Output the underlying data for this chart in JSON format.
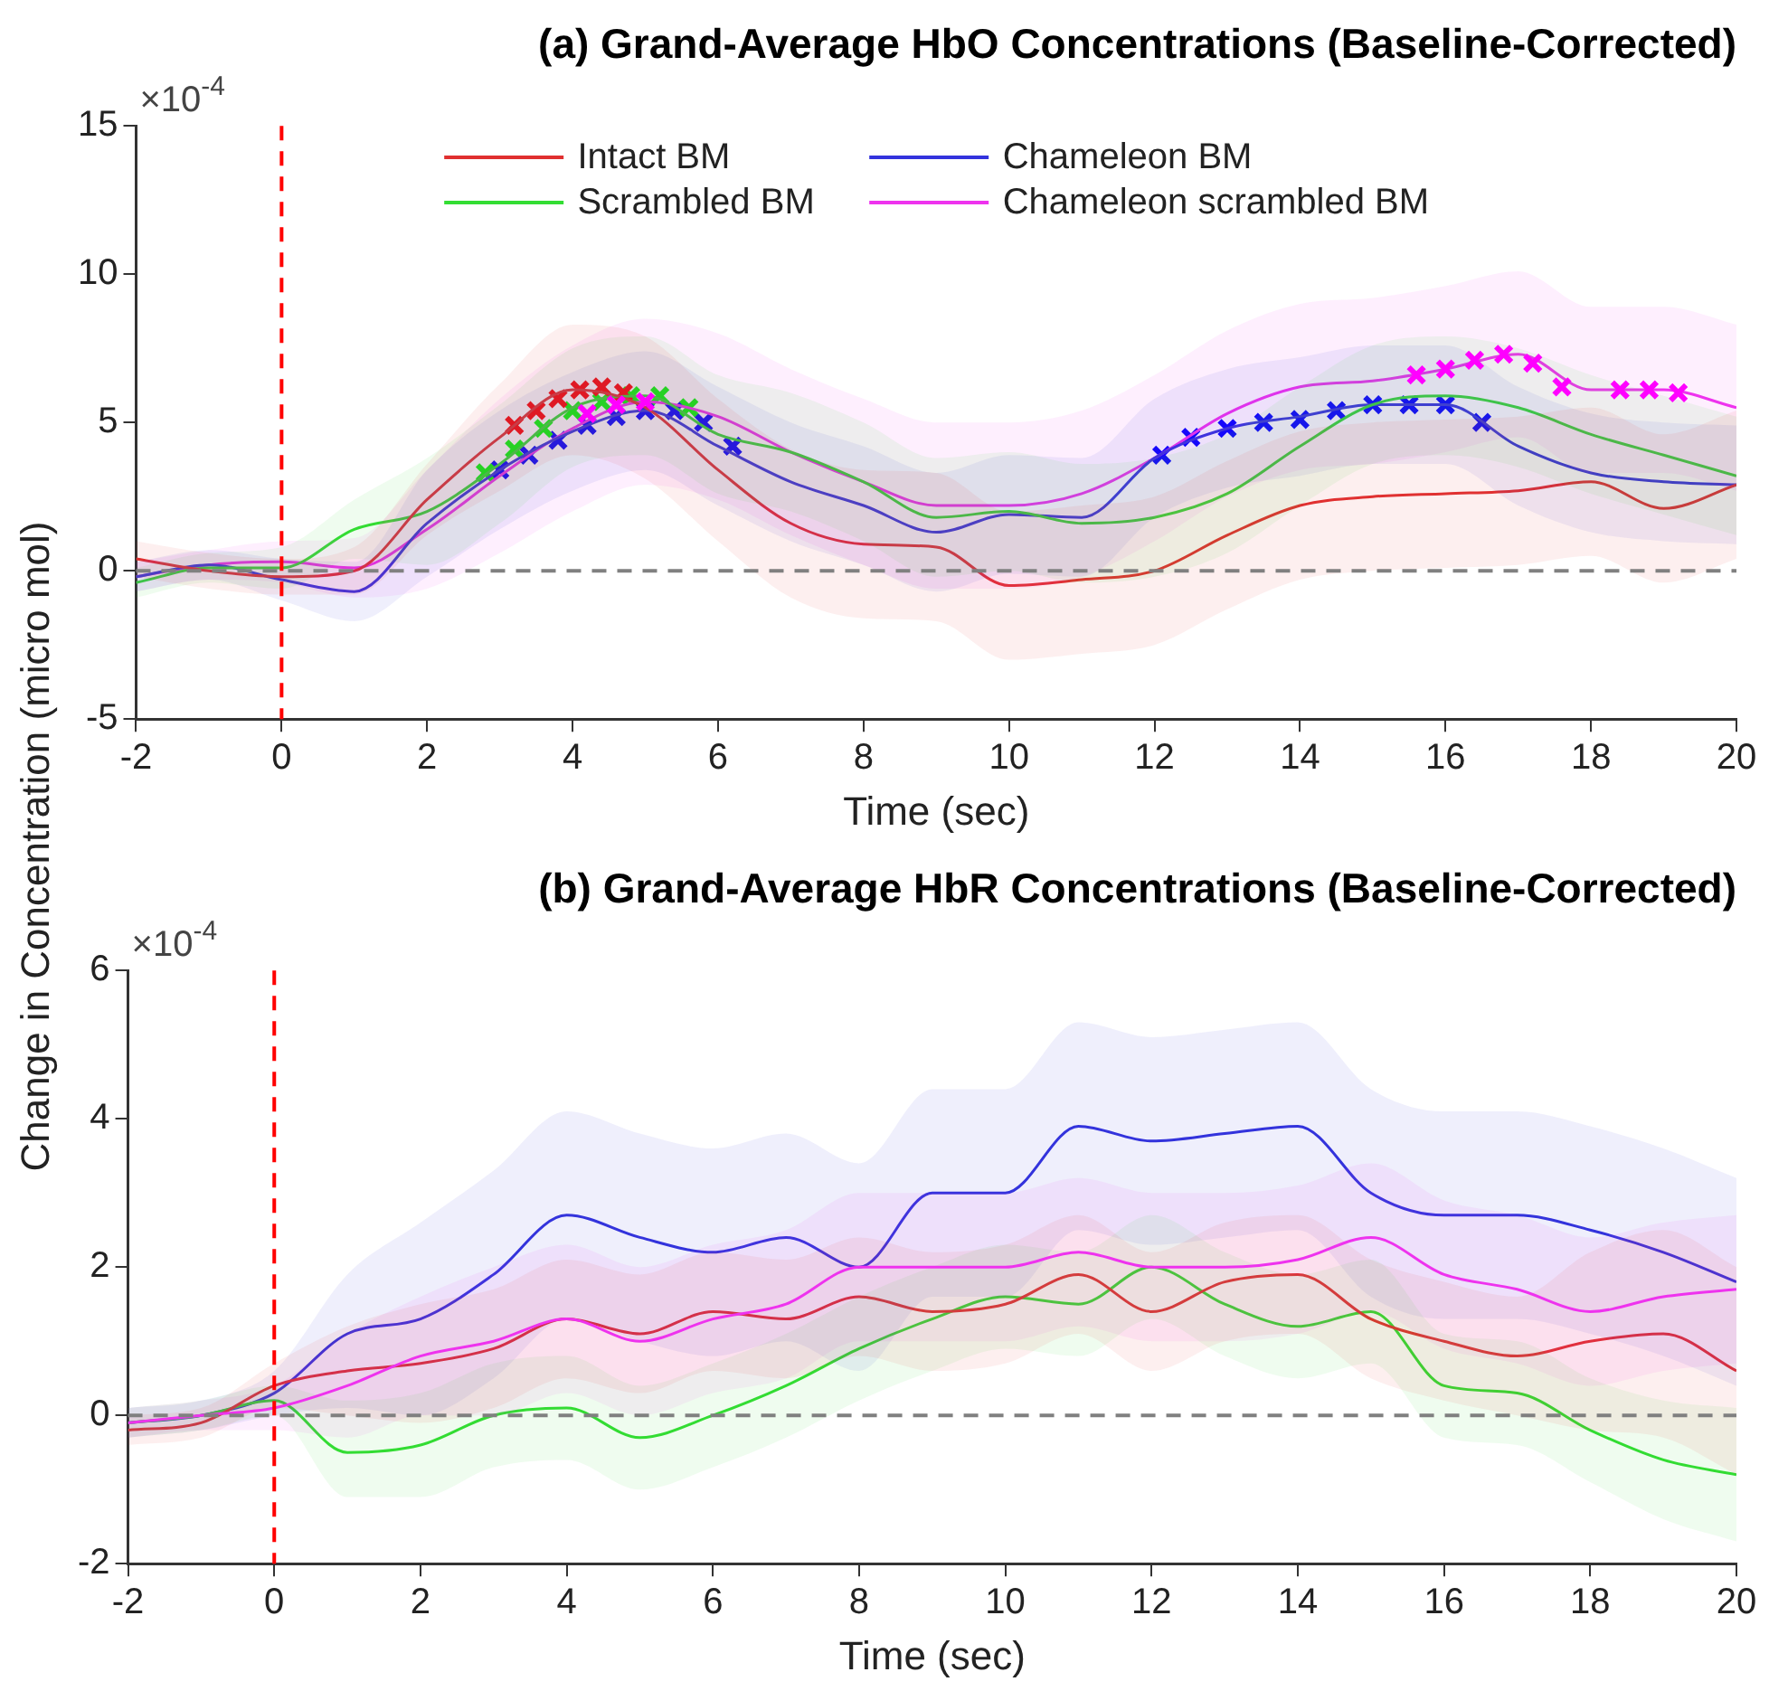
{
  "chart_data": [
    {
      "type": "line",
      "title": "(a) Grand-Average HbO Concentrations (Baseline-Corrected)",
      "xlabel": "Time (sec)",
      "ylabel": "Change in Concentration (micro mol)",
      "annotations": [
        "×10$^{-4}$"
      ],
      "xlim": [
        -2,
        20
      ],
      "xticks": [
        -2,
        0,
        2,
        4,
        6,
        8,
        10,
        12,
        14,
        16,
        18,
        20
      ],
      "ylim": [
        -5,
        15
      ],
      "yticks": [
        -5,
        0,
        5,
        10,
        15
      ],
      "grid": false,
      "legend": "top",
      "marker": "none",
      "line_style": "solid",
      "x": [
        -2,
        -1,
        0,
        1,
        2,
        3,
        4,
        5,
        6,
        7,
        8,
        9,
        10,
        11,
        12,
        13,
        14,
        15,
        16,
        17,
        18,
        19,
        20
      ],
      "ref_lines": [
        {
          "axis": "x",
          "value": 0,
          "color": "#ff0000",
          "line_style": "dashed"
        },
        {
          "axis": "y",
          "value": 0,
          "color": "#808080",
          "line_style": "dashed"
        }
      ],
      "series": [
        {
          "name": "Intact BM",
          "color": "#e03030",
          "values": [
            0.4,
            0,
            -0.2,
            0,
            2.4,
            4.5,
            6.1,
            5.5,
            3.4,
            1.6,
            0.9,
            0.8,
            -0.5,
            -0.3,
            0,
            1.2,
            2.2,
            2.5,
            2.6,
            2.7,
            3.0,
            2.1,
            2.9
          ],
          "lower": [
            -0.2,
            -0.6,
            -0.8,
            -0.8,
            1.2,
            2.7,
            3.9,
            3.1,
            1.0,
            -0.9,
            -1.6,
            -1.7,
            -3.0,
            -2.8,
            -2.5,
            -1.3,
            -0.3,
            0,
            0.1,
            0.2,
            0.5,
            -0.4,
            0.4
          ],
          "upper": [
            1.0,
            0.6,
            0.4,
            0.8,
            3.6,
            6.3,
            8.3,
            7.9,
            5.8,
            4.1,
            3.4,
            3.3,
            2.0,
            2.2,
            2.5,
            3.7,
            4.7,
            5.0,
            5.1,
            5.2,
            5.5,
            4.6,
            5.4
          ]
        },
        {
          "name": "Scrambled BM",
          "color": "#33dd33",
          "values": [
            -0.4,
            0.1,
            0.1,
            1.4,
            2.0,
            3.6,
            5.5,
            5.9,
            4.6,
            4.0,
            3.0,
            1.8,
            2.0,
            1.6,
            1.8,
            2.6,
            4.2,
            5.6,
            5.9,
            5.5,
            4.6,
            3.9,
            3.2
          ],
          "lower": [
            -0.9,
            -0.4,
            -0.6,
            0.4,
            0.2,
            1.6,
            3.5,
            3.9,
            2.6,
            2.0,
            1.0,
            -0.2,
            0,
            -0.4,
            -0.2,
            0.6,
            2.2,
            3.6,
            3.9,
            3.5,
            2.6,
            1.9,
            1.2
          ],
          "upper": [
            0.1,
            0.6,
            0.8,
            2.4,
            3.8,
            5.6,
            7.5,
            7.9,
            6.6,
            6.0,
            5.0,
            3.8,
            4.0,
            3.6,
            3.8,
            4.6,
            6.2,
            7.6,
            7.9,
            7.5,
            6.6,
            5.9,
            5.2
          ]
        },
        {
          "name": "Chameleon BM",
          "color": "#3333dd",
          "values": [
            -0.2,
            0.2,
            -0.3,
            -0.7,
            1.6,
            3.4,
            4.7,
            5.4,
            4.2,
            3.0,
            2.2,
            1.3,
            1.9,
            1.8,
            3.8,
            4.8,
            5.2,
            5.6,
            5.6,
            4.2,
            3.3,
            3.0,
            2.9
          ],
          "lower": [
            -0.7,
            -0.3,
            -1.0,
            -1.7,
            -0.2,
            1.4,
            2.7,
            3.4,
            2.2,
            1.0,
            0.2,
            -0.7,
            -0.1,
            -0.2,
            1.8,
            2.8,
            3.2,
            3.6,
            3.6,
            2.2,
            1.3,
            1.0,
            0.9
          ],
          "upper": [
            0.3,
            0.7,
            0.4,
            0.3,
            3.4,
            5.4,
            6.7,
            7.4,
            6.2,
            5.0,
            4.2,
            3.3,
            3.9,
            3.8,
            5.8,
            6.8,
            7.2,
            7.6,
            7.6,
            6.2,
            5.3,
            5.0,
            4.9
          ]
        },
        {
          "name": "Chameleon scrambled BM",
          "color": "#ee33ee",
          "values": [
            -0.2,
            0.2,
            0.3,
            0.1,
            1.4,
            3.2,
            4.8,
            5.7,
            5.2,
            4.0,
            3.0,
            2.2,
            2.2,
            2.6,
            3.8,
            5.3,
            6.2,
            6.4,
            6.8,
            7.3,
            6.1,
            6.1,
            5.5
          ],
          "lower": [
            -0.7,
            -0.3,
            -0.4,
            -0.9,
            -0.6,
            0.6,
            2.0,
            2.9,
            2.4,
            1.2,
            0.2,
            -0.6,
            -0.6,
            -0.2,
            1.0,
            2.5,
            3.4,
            3.6,
            4.0,
            4.5,
            3.3,
            3.3,
            2.7
          ],
          "upper": [
            0.3,
            0.7,
            1.0,
            1.1,
            3.4,
            5.8,
            7.6,
            8.5,
            8.0,
            6.8,
            5.8,
            5.0,
            5.0,
            5.4,
            6.6,
            8.1,
            9.0,
            9.2,
            9.6,
            10.1,
            8.9,
            8.9,
            8.3
          ]
        },
        {
          "type": "scatter",
          "marker": "cross",
          "color": "#ff0000",
          "x": [
            3.2,
            3.5,
            3.8,
            4.1,
            4.4,
            4.7
          ],
          "values": [
            4.9,
            5.4,
            5.8,
            6.1,
            6.2,
            6.0
          ]
        },
        {
          "type": "scatter",
          "marker": "cross",
          "color": "#00ff00",
          "x": [
            2.8,
            3.2,
            3.6,
            4.0,
            4.4,
            4.8,
            5.2,
            5.6
          ],
          "values": [
            3.3,
            4.1,
            4.8,
            5.4,
            5.7,
            5.9,
            5.9,
            5.5
          ]
        },
        {
          "type": "scatter",
          "marker": "cross",
          "color": "#0000ff",
          "x": [
            3.0,
            3.4,
            3.8,
            4.2,
            4.6,
            5.0,
            5.4,
            5.8,
            6.2,
            12.1,
            12.5,
            13,
            13.5,
            14,
            14.5,
            15,
            15.5,
            16,
            16.5
          ],
          "values": [
            3.4,
            3.9,
            4.4,
            4.9,
            5.2,
            5.4,
            5.4,
            5.0,
            4.2,
            3.9,
            4.5,
            4.8,
            5.0,
            5.1,
            5.4,
            5.6,
            5.6,
            5.6,
            5.0
          ]
        },
        {
          "type": "scatter",
          "marker": "cross",
          "color": "#ff00ff",
          "x": [
            4.2,
            4.6,
            5.0,
            15.6,
            16,
            16.4,
            16.8,
            17.2,
            17.6,
            18.4,
            18.8,
            19.2
          ],
          "values": [
            5.3,
            5.6,
            5.7,
            6.6,
            6.8,
            7.1,
            7.3,
            7.0,
            6.2,
            6.1,
            6.1,
            6.0
          ]
        }
      ]
    },
    {
      "type": "line",
      "title": "(b) Grand-Average HbR Concentrations (Baseline-Corrected)",
      "xlabel": "Time (sec)",
      "annotations": [
        "×10$^{-4}$"
      ],
      "xlim": [
        -2,
        20
      ],
      "xticks": [
        -2,
        0,
        2,
        4,
        6,
        8,
        10,
        12,
        14,
        16,
        18,
        20
      ],
      "ylim": [
        -2,
        6
      ],
      "yticks": [
        -2,
        0,
        2,
        4,
        6
      ],
      "grid": false,
      "marker": "none",
      "line_style": "solid",
      "x": [
        -2,
        -1,
        0,
        1,
        2,
        3,
        4,
        5,
        6,
        7,
        8,
        9,
        10,
        11,
        12,
        13,
        14,
        15,
        16,
        17,
        18,
        19,
        20
      ],
      "ref_lines": [
        {
          "axis": "x",
          "value": 0,
          "color": "#ff0000",
          "line_style": "dashed"
        },
        {
          "axis": "y",
          "value": 0,
          "color": "#808080",
          "line_style": "dashed"
        }
      ],
      "series": [
        {
          "color": "#e03030",
          "values": [
            -0.2,
            -0.1,
            0.4,
            0.6,
            0.7,
            0.9,
            1.3,
            1.1,
            1.4,
            1.3,
            1.6,
            1.4,
            1.5,
            1.9,
            1.4,
            1.8,
            1.9,
            1.3,
            1.0,
            0.8,
            1.0,
            1.1,
            0.6
          ],
          "lower": [
            -0.4,
            -0.3,
            0.1,
            0,
            -0.1,
            0.1,
            0.5,
            0.3,
            0.6,
            0.5,
            0.8,
            0.6,
            0.7,
            1.1,
            0.6,
            1.0,
            1.1,
            0.5,
            0.2,
            0,
            -0.2,
            -0.3,
            -0.8
          ],
          "upper": [
            0,
            0.1,
            0.7,
            1.2,
            1.5,
            1.7,
            2.1,
            1.9,
            2.2,
            2.1,
            2.4,
            2.2,
            2.3,
            2.7,
            2.2,
            2.6,
            2.7,
            2.1,
            1.8,
            1.6,
            2.2,
            2.5,
            2.0
          ]
        },
        {
          "color": "#33dd33",
          "values": [
            -0.1,
            0,
            0.2,
            -0.5,
            -0.4,
            0,
            0.1,
            -0.3,
            0,
            0.4,
            0.9,
            1.3,
            1.6,
            1.5,
            2.0,
            1.5,
            1.2,
            1.4,
            0.4,
            0.3,
            -0.2,
            -0.6,
            -0.8
          ],
          "lower": [
            -0.3,
            -0.2,
            0,
            -1.1,
            -1.1,
            -0.7,
            -0.6,
            -1.0,
            -0.7,
            -0.3,
            0.2,
            0.6,
            0.9,
            0.8,
            1.3,
            0.8,
            0.5,
            0.7,
            -0.3,
            -0.4,
            -0.9,
            -1.4,
            -1.7
          ],
          "upper": [
            0.1,
            0.2,
            0.4,
            0.2,
            0.3,
            0.7,
            0.8,
            0.4,
            0.7,
            1.1,
            1.6,
            2.0,
            2.3,
            2.2,
            2.7,
            2.2,
            1.9,
            2.1,
            1.1,
            1.0,
            0.5,
            0.2,
            0.1
          ]
        },
        {
          "color": "#3333dd",
          "values": [
            -0.1,
            0,
            0.3,
            1.1,
            1.3,
            1.9,
            2.7,
            2.4,
            2.2,
            2.4,
            2.0,
            3.0,
            3.0,
            3.9,
            3.7,
            3.8,
            3.9,
            3.0,
            2.7,
            2.7,
            2.5,
            2.2,
            1.8
          ],
          "lower": [
            -0.3,
            -0.2,
            0,
            0.1,
            0,
            0.5,
            1.3,
            1.0,
            0.8,
            1.0,
            0.6,
            1.6,
            1.6,
            2.5,
            2.3,
            2.4,
            2.5,
            1.6,
            1.3,
            1.3,
            1.1,
            0.8,
            0.4
          ],
          "upper": [
            0.1,
            0.2,
            0.6,
            1.9,
            2.6,
            3.3,
            4.1,
            3.8,
            3.6,
            3.8,
            3.4,
            4.4,
            4.4,
            5.3,
            5.1,
            5.2,
            5.3,
            4.4,
            4.1,
            4.1,
            3.9,
            3.6,
            3.2
          ]
        },
        {
          "color": "#ee33ee",
          "values": [
            -0.1,
            0,
            0.1,
            0.4,
            0.8,
            1.0,
            1.3,
            1.0,
            1.3,
            1.5,
            2.0,
            2.0,
            2.0,
            2.2,
            2.0,
            2.0,
            2.1,
            2.4,
            1.9,
            1.7,
            1.4,
            1.6,
            1.7
          ],
          "lower": [
            -0.3,
            -0.2,
            -0.2,
            -0.3,
            0,
            0,
            0.3,
            0,
            0.3,
            0.5,
            1.0,
            1.0,
            1.0,
            1.2,
            1.0,
            1.0,
            1.1,
            1.4,
            0.9,
            0.7,
            0.4,
            0.6,
            0.7
          ],
          "upper": [
            0.1,
            0.2,
            0.4,
            1.1,
            1.6,
            2.0,
            2.3,
            2.0,
            2.3,
            2.5,
            3.0,
            3.0,
            3.0,
            3.2,
            3.0,
            3.0,
            3.1,
            3.4,
            2.9,
            2.7,
            2.4,
            2.6,
            2.7
          ]
        }
      ]
    }
  ]
}
